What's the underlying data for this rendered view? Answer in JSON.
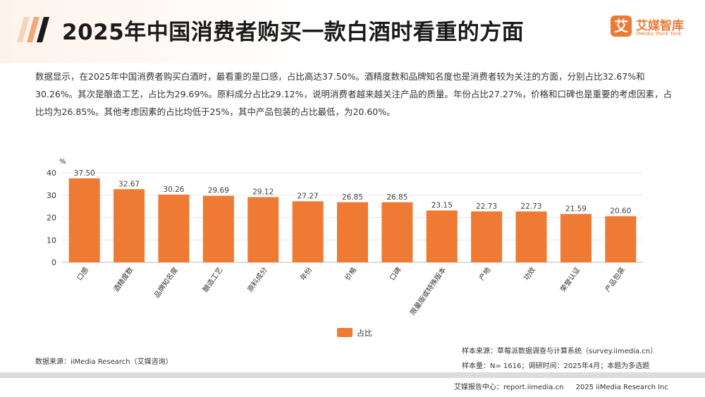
{
  "header": {
    "title": "2025年中国消费者购买一款白酒时看重的方面",
    "logo_mark": "艾",
    "logo_cn": "艾媒智库",
    "logo_en": "iiMedia Think Tank"
  },
  "summary": "数据显示，在2025年中国消费者购买白酒时，最看重的是口感，占比高达37.50%。酒精度数和品牌知名度也是消费者较为关注的方面，分别占比32.67%和30.26%。其次是酿造工艺，占比为29.69%。原料成分占比29.12%，说明消费者越来越关注产品的质量。年份占比27.27%，价格和口碑也是重要的考虑因素，占比均为26.85%。其他考虑因素的占比均低于25%，其中产品包装的占比最低，为20.60%。",
  "chart_data": {
    "type": "bar",
    "title": "",
    "ylabel": "%",
    "xlabel": "",
    "ylim": [
      0,
      40
    ],
    "yticks": [
      0,
      10,
      20,
      30,
      40
    ],
    "grid": true,
    "categories": [
      "口感",
      "酒精度数",
      "品牌知名度",
      "酿造工艺",
      "原料成分",
      "年份",
      "价格",
      "口碑",
      "限量版或特殊版本",
      "产地",
      "功效",
      "荣誉认证",
      "产品包装"
    ],
    "series": [
      {
        "name": "占比",
        "values": [
          37.5,
          32.67,
          30.26,
          29.69,
          29.12,
          27.27,
          26.85,
          26.85,
          23.15,
          22.73,
          22.73,
          21.59,
          20.6
        ],
        "labels": [
          "37.50",
          "32.67",
          "30.26",
          "29.69",
          "29.12",
          "27.27",
          "26.85",
          "26.85",
          "23.15",
          "22.73",
          "22.73",
          "21.59",
          "20.60"
        ]
      }
    ],
    "legend": "bottom-center"
  },
  "colors": {
    "bar": "#ee7a33",
    "accent": "#ee7a33"
  },
  "footer": {
    "source": "数据来源：iiMedia Research（艾媒咨询）",
    "sample_source": "样本来源：草莓派数据调查与计算系统（survey.iimedia.cn）",
    "sample_size": "样本量：N= 1616；调研时间：2025年4月；本题为多选题",
    "report_center": "艾媒报告中心：report.iimedia.cn",
    "copyright": "2025 iiMedia Research Inc"
  }
}
